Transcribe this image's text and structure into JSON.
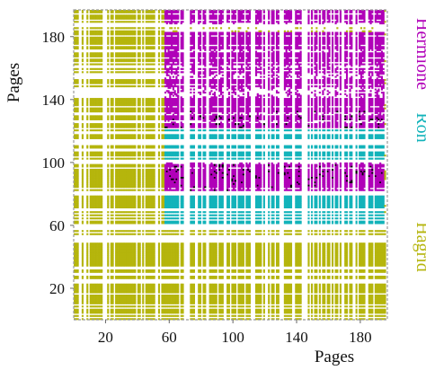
{
  "chart_data": {
    "type": "heatmap",
    "title": "",
    "xlabel": "Pages",
    "ylabel": "Pages",
    "xlim": [
      0,
      197
    ],
    "ylim": [
      0,
      197
    ],
    "x_ticks": [
      20,
      60,
      100,
      140,
      180
    ],
    "y_ticks": [
      20,
      60,
      100,
      140,
      180
    ],
    "grid": false,
    "legend_position": "right, vertical",
    "series": [
      {
        "name": "Hermione",
        "color": "#b000b8",
        "regions": [
          {
            "x": [
              57,
              195
            ],
            "y": [
              122,
              183
            ]
          },
          {
            "x": [
              57,
              195
            ],
            "y": [
              188,
              197
            ]
          },
          {
            "x": [
              57,
              195
            ],
            "y": [
              82,
              100
            ]
          }
        ]
      },
      {
        "name": "Ron",
        "color": "#12b3ba",
        "regions": [
          {
            "x": [
              57,
              195
            ],
            "y": [
              58,
              133
            ]
          }
        ]
      },
      {
        "name": "Hagrid",
        "color": "#b5b50c",
        "regions": [
          {
            "x": [
              0,
              197
            ],
            "y": [
              0,
              197
            ]
          }
        ]
      }
    ],
    "overlap_color": "#000000"
  }
}
